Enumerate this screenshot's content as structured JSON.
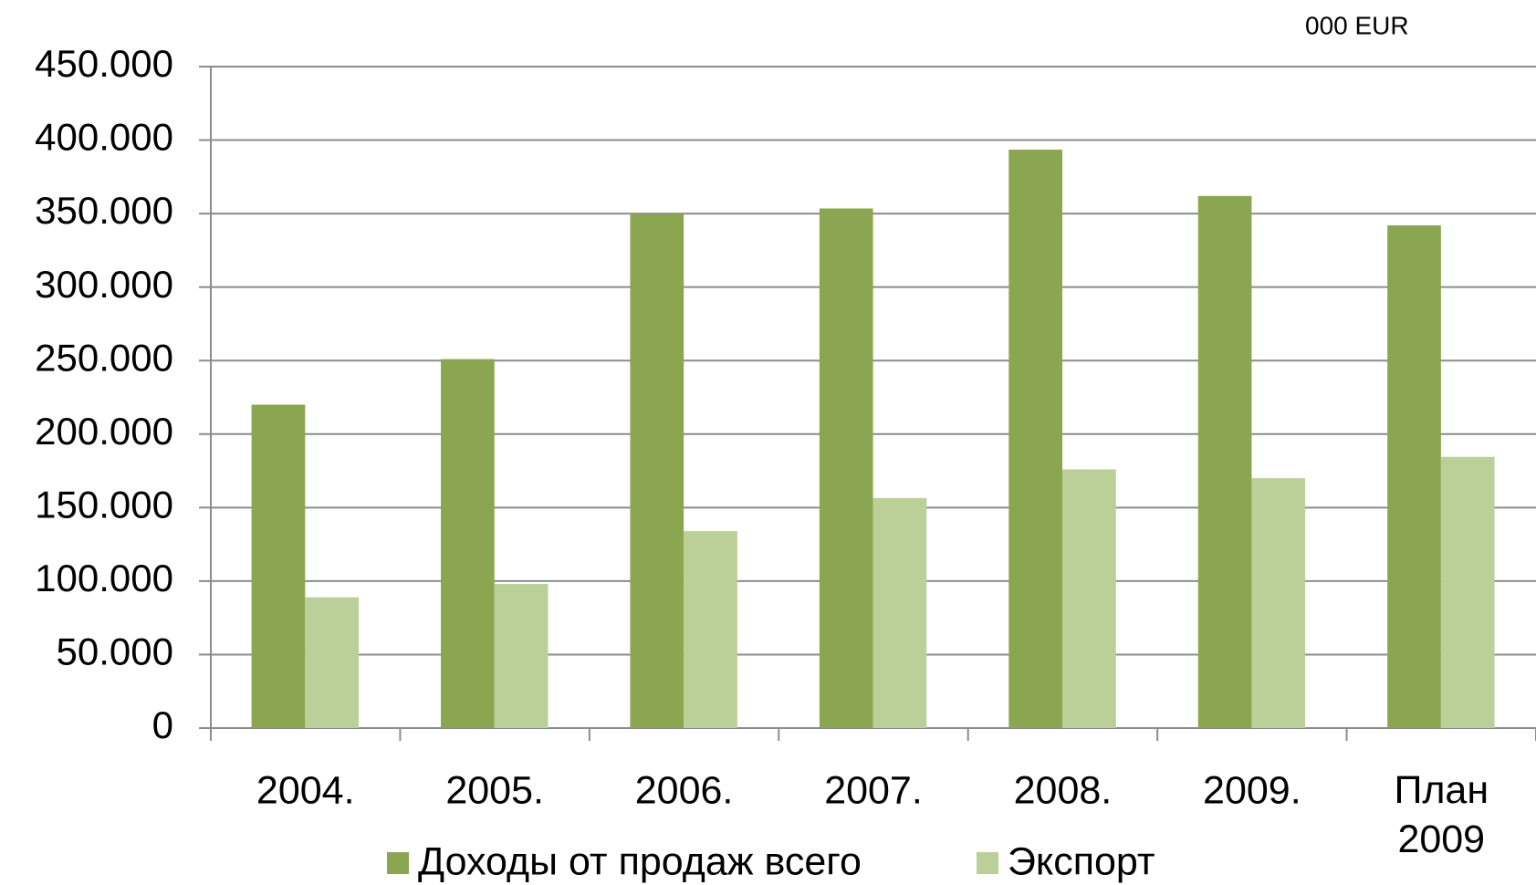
{
  "chart_data": {
    "type": "bar",
    "annotation": "000 EUR",
    "categories": [
      "2004.",
      "2005.",
      "2006.",
      "2007.",
      "2008.",
      "2009.",
      "План 2009"
    ],
    "series": [
      {
        "name": "Доходы от продаж всего",
        "color": "#8ba651",
        "values": [
          220000,
          251000,
          350000,
          353500,
          393500,
          362000,
          342000
        ]
      },
      {
        "name": "Экспорт",
        "color": "#bbcf98",
        "values": [
          89000,
          98000,
          134000,
          156500,
          176000,
          170000,
          184500
        ]
      }
    ],
    "ylim": [
      0,
      450000
    ],
    "yticks": [
      0,
      {
        "value": 50000,
        "label": "50.000"
      },
      {
        "value": 100000,
        "label": "100.000"
      },
      {
        "value": 150000,
        "label": "150.000"
      },
      {
        "value": 200000,
        "label": "200.000"
      },
      {
        "value": 250000,
        "label": "250.000"
      },
      {
        "value": 300000,
        "label": "300.000"
      },
      {
        "value": 350000,
        "label": "350.000"
      },
      {
        "value": 400000,
        "label": "400.000"
      },
      {
        "value": 450000,
        "label": "450.000"
      }
    ],
    "grid": true
  }
}
